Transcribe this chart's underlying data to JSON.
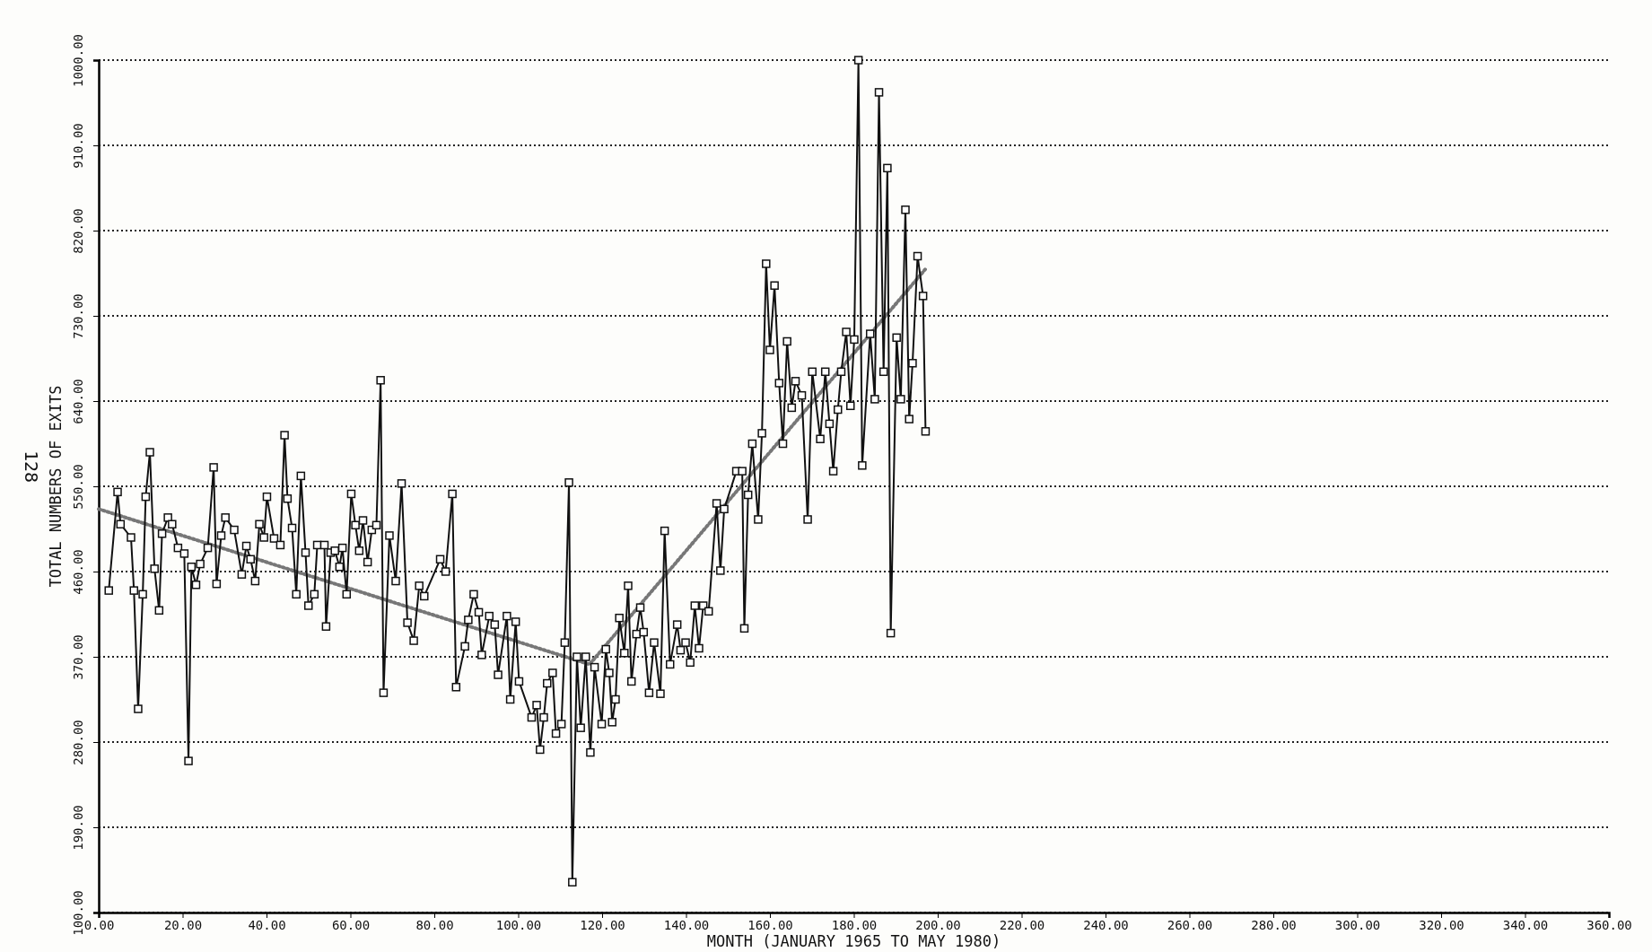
{
  "chart_data": {
    "type": "line",
    "xlabel": "MONTH (JANUARY 1965 TO MAY 1980)",
    "ylabel": "TOTAL NUMBERS OF EXITS",
    "annotations": [
      "128"
    ],
    "xlim": [
      0,
      360
    ],
    "xticks": [
      {
        "value": 0,
        "label": "0.00"
      },
      {
        "value": 20,
        "label": "20.00"
      },
      {
        "value": 40,
        "label": "40.00"
      },
      {
        "value": 60,
        "label": "60.00"
      },
      {
        "value": 80,
        "label": "80.00"
      },
      {
        "value": 100,
        "label": "100.00"
      },
      {
        "value": 120,
        "label": "120.00"
      },
      {
        "value": 140,
        "label": "140.00"
      },
      {
        "value": 160,
        "label": "160.00"
      },
      {
        "value": 180,
        "label": "180.00"
      },
      {
        "value": 200,
        "label": "200.00"
      },
      {
        "value": 220,
        "label": "220.00"
      },
      {
        "value": 240,
        "label": "240.00"
      },
      {
        "value": 260,
        "label": "260.00"
      },
      {
        "value": 280,
        "label": "280.00"
      },
      {
        "value": 300,
        "label": "300.00"
      },
      {
        "value": 320,
        "label": "320.00"
      },
      {
        "value": 340,
        "label": "340.00"
      },
      {
        "value": 360,
        "label": "360.00"
      }
    ],
    "ylim": [
      100,
      1000
    ],
    "yticks": [
      {
        "value": 100,
        "label": "100.00"
      },
      {
        "value": 190,
        "label": "190.00"
      },
      {
        "value": 280,
        "label": "280.00"
      },
      {
        "value": 370,
        "label": "370.00"
      },
      {
        "value": 460,
        "label": "460.00"
      },
      {
        "value": 550,
        "label": "550.00"
      },
      {
        "value": 640,
        "label": "640.00"
      },
      {
        "value": 730,
        "label": "730.00"
      },
      {
        "value": 820,
        "label": "820.00"
      },
      {
        "value": 910,
        "label": "910.00"
      },
      {
        "value": 1000,
        "label": "1000.00"
      }
    ],
    "grid": "y",
    "series": [
      {
        "color": "#111111",
        "marker": "square",
        "line_style": "solid",
        "x": [
          2.4,
          4.5,
          5.2,
          7.7,
          8.4,
          9.4,
          10.5,
          11.2,
          12.2,
          13.3,
          14.4,
          15.1,
          16.5,
          17.5,
          18.9,
          20.4,
          21.4,
          22.1,
          23.2,
          24.2,
          26,
          27.4,
          28.1,
          29.2,
          30.2,
          32.3,
          34.1,
          35.2,
          36.2,
          37.3,
          38.3,
          39.4,
          40.1,
          41.8,
          43.3,
          44.3,
          45,
          46.1,
          47.1,
          48.2,
          49.3,
          50,
          51.4,
          52.1,
          53.8,
          54.2,
          55.3,
          56.3,
          57.4,
          58.1,
          59.1,
          60.2,
          61.2,
          62.1,
          63,
          64.1,
          65.1,
          66.2,
          67.2,
          67.9,
          69.3,
          70.8,
          72.2,
          73.6,
          75.1,
          76.4,
          77.6,
          81.4,
          82.7,
          84.3,
          85.2,
          87.3,
          88.1,
          89.4,
          90.6,
          91.3,
          93.1,
          94.4,
          95.2,
          97.3,
          98.1,
          99.4,
          100.2,
          103.2,
          104.4,
          105.2,
          106.1,
          106.9,
          108.2,
          109,
          110.3,
          111.1,
          112.1,
          112.9,
          114,
          114.9,
          116.1,
          117.2,
          118.2,
          119.9,
          120.9,
          121.7,
          122.4,
          123.2,
          124.1,
          125.3,
          126.2,
          127,
          128.2,
          129.1,
          129.9,
          131.2,
          132.4,
          133.9,
          134.9,
          136.2,
          137.9,
          138.7,
          139.9,
          141,
          142.1,
          143.1,
          144.1,
          145.4,
          147.3,
          148.2,
          149.1,
          152,
          153.4,
          153.9,
          154.8,
          155.8,
          157.2,
          158.1,
          159.1,
          160,
          161.1,
          162.2,
          163.1,
          164.1,
          165.2,
          166.1,
          167.6,
          169,
          170.1,
          172,
          173.2,
          174.2,
          175.1,
          176.2,
          177,
          178.2,
          179.2,
          180.1,
          181.1,
          182,
          183.9,
          185,
          186,
          187.1,
          188,
          188.8,
          190.2,
          191.2,
          192.3,
          193.2,
          194,
          195.2,
          196.5,
          197.1
        ],
        "values": [
          440,
          544,
          510,
          496,
          440,
          315,
          436,
          539,
          586,
          463,
          419,
          500,
          517,
          510,
          485,
          479,
          260,
          465,
          446,
          468,
          485,
          570,
          447,
          498,
          517,
          504,
          457,
          487,
          473,
          450,
          510,
          496,
          539,
          495,
          488,
          604,
          537,
          506,
          436,
          561,
          480,
          424,
          436,
          488,
          488,
          402,
          480,
          482,
          465,
          485,
          436,
          542,
          509,
          482,
          514,
          470,
          504,
          509,
          662,
          332,
          498,
          450,
          553,
          406,
          387,
          445,
          434,
          473,
          460,
          542,
          338,
          381,
          409,
          436,
          417,
          372,
          413,
          404,
          351,
          413,
          325,
          407,
          344,
          306,
          319,
          272,
          306,
          342,
          353,
          289,
          299,
          385,
          554,
          132,
          370,
          295,
          370,
          269,
          359,
          299,
          378,
          353,
          301,
          325,
          411,
          374,
          445,
          344,
          394,
          422,
          396,
          332,
          385,
          331,
          503,
          362,
          404,
          377,
          385,
          364,
          424,
          379,
          424,
          418,
          532,
          461,
          526,
          566,
          566,
          400,
          541,
          595,
          515,
          606,
          785,
          694,
          762,
          659,
          595,
          703,
          633,
          661,
          646,
          515,
          671,
          600,
          671,
          616,
          566,
          631,
          671,
          713,
          635,
          705,
          1000,
          572,
          711,
          642,
          966,
          671,
          886,
          395,
          707,
          642,
          842,
          621,
          680,
          793,
          751,
          608
        ]
      },
      {
        "color": "#777777",
        "marker": "none",
        "line_style": "dotted",
        "x": [
          0,
          117,
          197
        ],
        "values": [
          526,
          362,
          779
        ]
      }
    ]
  }
}
